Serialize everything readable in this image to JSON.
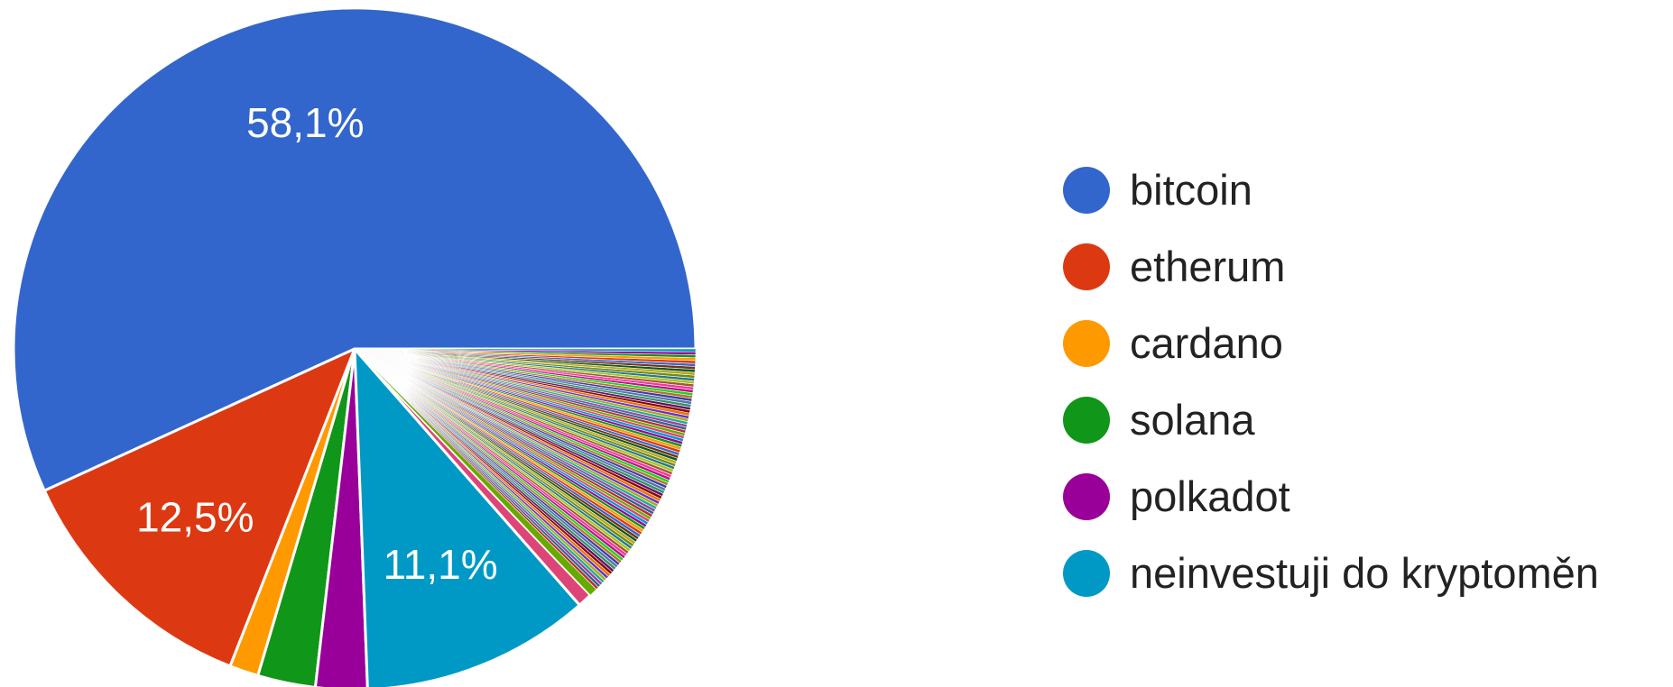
{
  "chart_data": {
    "type": "pie",
    "slices": [
      {
        "label": "bitcoin",
        "value": 58.1,
        "color": "#3366cc",
        "value_label": "58,1%",
        "in_legend": true
      },
      {
        "label": "etherum",
        "value": 12.5,
        "color": "#dc3912",
        "value_label": "12,5%",
        "in_legend": true
      },
      {
        "label": "cardano",
        "value": 1.4,
        "color": "#ff9900",
        "value_label": "",
        "in_legend": true
      },
      {
        "label": "solana",
        "value": 2.8,
        "color": "#109618",
        "value_label": "",
        "in_legend": true
      },
      {
        "label": "polkadot",
        "value": 2.5,
        "color": "#990099",
        "value_label": "",
        "in_legend": true
      },
      {
        "label": "neinvestuji do kryptoměn",
        "value": 11.1,
        "color": "#0099c6",
        "value_label": "11,1%",
        "in_legend": true
      },
      {
        "label": "",
        "value": 0.7,
        "color": "#dd4477",
        "value_label": "",
        "in_legend": false
      },
      {
        "label": "",
        "value": 0.4,
        "color": "#66aa00",
        "value_label": "",
        "in_legend": false
      },
      {
        "label": "",
        "value": 0.14,
        "color": "#b82e2e",
        "value_label": "",
        "in_legend": false
      },
      {
        "label": "",
        "value": 0.14,
        "color": "#316395",
        "value_label": "",
        "in_legend": false
      },
      {
        "label": "",
        "value": 0.14,
        "color": "#994499",
        "value_label": "",
        "in_legend": false
      },
      {
        "label": "",
        "value": 0.14,
        "color": "#22aa99",
        "value_label": "",
        "in_legend": false
      },
      {
        "label": "",
        "value": 0.14,
        "color": "#aaaa11",
        "value_label": "",
        "in_legend": false
      },
      {
        "label": "",
        "value": 0.14,
        "color": "#6633cc",
        "value_label": "",
        "in_legend": false
      },
      {
        "label": "",
        "value": 0.14,
        "color": "#e67300",
        "value_label": "",
        "in_legend": false
      },
      {
        "label": "",
        "value": 0.14,
        "color": "#8b0707",
        "value_label": "",
        "in_legend": false
      },
      {
        "label": "",
        "value": 0.14,
        "color": "#651067",
        "value_label": "",
        "in_legend": false
      },
      {
        "label": "",
        "value": 0.14,
        "color": "#329262",
        "value_label": "",
        "in_legend": false
      },
      {
        "label": "",
        "value": 0.14,
        "color": "#5574a6",
        "value_label": "",
        "in_legend": false
      },
      {
        "label": "",
        "value": 0.14,
        "color": "#3b3eac",
        "value_label": "",
        "in_legend": false
      },
      {
        "label": "",
        "value": 0.14,
        "color": "#b77322",
        "value_label": "",
        "in_legend": false
      },
      {
        "label": "",
        "value": 0.14,
        "color": "#16d620",
        "value_label": "",
        "in_legend": false
      },
      {
        "label": "",
        "value": 0.14,
        "color": "#b91383",
        "value_label": "",
        "in_legend": false
      },
      {
        "label": "",
        "value": 0.14,
        "color": "#f4359e",
        "value_label": "",
        "in_legend": false
      },
      {
        "label": "",
        "value": 0.14,
        "color": "#9c5935",
        "value_label": "",
        "in_legend": false
      },
      {
        "label": "",
        "value": 0.14,
        "color": "#a9c413",
        "value_label": "",
        "in_legend": false
      },
      {
        "label": "",
        "value": 0.14,
        "color": "#2a778d",
        "value_label": "",
        "in_legend": false
      },
      {
        "label": "",
        "value": 0.14,
        "color": "#668d1c",
        "value_label": "",
        "in_legend": false
      },
      {
        "label": "",
        "value": 0.14,
        "color": "#bea413",
        "value_label": "",
        "in_legend": false
      },
      {
        "label": "",
        "value": 0.14,
        "color": "#0c5922",
        "value_label": "",
        "in_legend": false
      },
      {
        "label": "",
        "value": 0.14,
        "color": "#743411",
        "value_label": "",
        "in_legend": false
      },
      {
        "label": "",
        "value": 0.14,
        "color": "#3366cc",
        "value_label": "",
        "in_legend": false
      },
      {
        "label": "",
        "value": 0.14,
        "color": "#dc3912",
        "value_label": "",
        "in_legend": false
      },
      {
        "label": "",
        "value": 0.14,
        "color": "#ff9900",
        "value_label": "",
        "in_legend": false
      },
      {
        "label": "",
        "value": 0.14,
        "color": "#109618",
        "value_label": "",
        "in_legend": false
      },
      {
        "label": "",
        "value": 0.14,
        "color": "#990099",
        "value_label": "",
        "in_legend": false
      },
      {
        "label": "",
        "value": 0.14,
        "color": "#0099c6",
        "value_label": "",
        "in_legend": false
      },
      {
        "label": "",
        "value": 0.14,
        "color": "#dd4477",
        "value_label": "",
        "in_legend": false
      },
      {
        "label": "",
        "value": 0.14,
        "color": "#66aa00",
        "value_label": "",
        "in_legend": false
      },
      {
        "label": "",
        "value": 0.14,
        "color": "#b82e2e",
        "value_label": "",
        "in_legend": false
      },
      {
        "label": "",
        "value": 0.14,
        "color": "#316395",
        "value_label": "",
        "in_legend": false
      },
      {
        "label": "",
        "value": 0.14,
        "color": "#994499",
        "value_label": "",
        "in_legend": false
      },
      {
        "label": "",
        "value": 0.14,
        "color": "#22aa99",
        "value_label": "",
        "in_legend": false
      },
      {
        "label": "",
        "value": 0.14,
        "color": "#aaaa11",
        "value_label": "",
        "in_legend": false
      },
      {
        "label": "",
        "value": 0.14,
        "color": "#6633cc",
        "value_label": "",
        "in_legend": false
      },
      {
        "label": "",
        "value": 0.14,
        "color": "#e67300",
        "value_label": "",
        "in_legend": false
      },
      {
        "label": "",
        "value": 0.14,
        "color": "#8b0707",
        "value_label": "",
        "in_legend": false
      },
      {
        "label": "",
        "value": 0.14,
        "color": "#651067",
        "value_label": "",
        "in_legend": false
      },
      {
        "label": "",
        "value": 0.14,
        "color": "#329262",
        "value_label": "",
        "in_legend": false
      },
      {
        "label": "",
        "value": 0.14,
        "color": "#5574a6",
        "value_label": "",
        "in_legend": false
      },
      {
        "label": "",
        "value": 0.14,
        "color": "#3b3eac",
        "value_label": "",
        "in_legend": false
      },
      {
        "label": "",
        "value": 0.14,
        "color": "#b77322",
        "value_label": "",
        "in_legend": false
      },
      {
        "label": "",
        "value": 0.14,
        "color": "#16d620",
        "value_label": "",
        "in_legend": false
      },
      {
        "label": "",
        "value": 0.14,
        "color": "#b91383",
        "value_label": "",
        "in_legend": false
      },
      {
        "label": "",
        "value": 0.14,
        "color": "#f4359e",
        "value_label": "",
        "in_legend": false
      },
      {
        "label": "",
        "value": 0.14,
        "color": "#9c5935",
        "value_label": "",
        "in_legend": false
      },
      {
        "label": "",
        "value": 0.14,
        "color": "#a9c413",
        "value_label": "",
        "in_legend": false
      },
      {
        "label": "",
        "value": 0.14,
        "color": "#2a778d",
        "value_label": "",
        "in_legend": false
      },
      {
        "label": "",
        "value": 0.14,
        "color": "#668d1c",
        "value_label": "",
        "in_legend": false
      },
      {
        "label": "",
        "value": 0.14,
        "color": "#bea413",
        "value_label": "",
        "in_legend": false
      },
      {
        "label": "",
        "value": 0.14,
        "color": "#0c5922",
        "value_label": "",
        "in_legend": false
      },
      {
        "label": "",
        "value": 0.14,
        "color": "#743411",
        "value_label": "",
        "in_legend": false
      },
      {
        "label": "",
        "value": 0.14,
        "color": "#3366cc",
        "value_label": "",
        "in_legend": false
      },
      {
        "label": "",
        "value": 0.14,
        "color": "#dc3912",
        "value_label": "",
        "in_legend": false
      },
      {
        "label": "",
        "value": 0.14,
        "color": "#ff9900",
        "value_label": "",
        "in_legend": false
      },
      {
        "label": "",
        "value": 0.14,
        "color": "#109618",
        "value_label": "",
        "in_legend": false
      },
      {
        "label": "",
        "value": 0.14,
        "color": "#990099",
        "value_label": "",
        "in_legend": false
      },
      {
        "label": "",
        "value": 0.14,
        "color": "#0099c6",
        "value_label": "",
        "in_legend": false
      },
      {
        "label": "",
        "value": 0.14,
        "color": "#dd4477",
        "value_label": "",
        "in_legend": false
      },
      {
        "label": "",
        "value": 0.14,
        "color": "#66aa00",
        "value_label": "",
        "in_legend": false
      },
      {
        "label": "",
        "value": 0.14,
        "color": "#b82e2e",
        "value_label": "",
        "in_legend": false
      },
      {
        "label": "",
        "value": 0.14,
        "color": "#316395",
        "value_label": "",
        "in_legend": false
      },
      {
        "label": "",
        "value": 0.14,
        "color": "#994499",
        "value_label": "",
        "in_legend": false
      },
      {
        "label": "",
        "value": 0.14,
        "color": "#22aa99",
        "value_label": "",
        "in_legend": false
      },
      {
        "label": "",
        "value": 0.14,
        "color": "#aaaa11",
        "value_label": "",
        "in_legend": false
      },
      {
        "label": "",
        "value": 0.14,
        "color": "#6633cc",
        "value_label": "",
        "in_legend": false
      },
      {
        "label": "",
        "value": 0.14,
        "color": "#e67300",
        "value_label": "",
        "in_legend": false
      },
      {
        "label": "",
        "value": 0.14,
        "color": "#8b0707",
        "value_label": "",
        "in_legend": false
      },
      {
        "label": "",
        "value": 0.14,
        "color": "#651067",
        "value_label": "",
        "in_legend": false
      },
      {
        "label": "",
        "value": 0.14,
        "color": "#329262",
        "value_label": "",
        "in_legend": false
      },
      {
        "label": "",
        "value": 0.14,
        "color": "#5574a6",
        "value_label": "",
        "in_legend": false
      },
      {
        "label": "",
        "value": 0.14,
        "color": "#3b3eac",
        "value_label": "",
        "in_legend": false
      },
      {
        "label": "",
        "value": 0.14,
        "color": "#b77322",
        "value_label": "",
        "in_legend": false
      },
      {
        "label": "",
        "value": 0.14,
        "color": "#16d620",
        "value_label": "",
        "in_legend": false
      },
      {
        "label": "",
        "value": 0.14,
        "color": "#b91383",
        "value_label": "",
        "in_legend": false
      },
      {
        "label": "",
        "value": 0.14,
        "color": "#f4359e",
        "value_label": "",
        "in_legend": false
      },
      {
        "label": "",
        "value": 0.14,
        "color": "#9c5935",
        "value_label": "",
        "in_legend": false
      },
      {
        "label": "",
        "value": 0.14,
        "color": "#a9c413",
        "value_label": "",
        "in_legend": false
      },
      {
        "label": "",
        "value": 0.14,
        "color": "#2a778d",
        "value_label": "",
        "in_legend": false
      },
      {
        "label": "",
        "value": 0.14,
        "color": "#668d1c",
        "value_label": "",
        "in_legend": false
      },
      {
        "label": "",
        "value": 0.14,
        "color": "#bea413",
        "value_label": "",
        "in_legend": false
      },
      {
        "label": "",
        "value": 0.14,
        "color": "#0c5922",
        "value_label": "",
        "in_legend": false
      },
      {
        "label": "",
        "value": 0.14,
        "color": "#743411",
        "value_label": "",
        "in_legend": false
      },
      {
        "label": "",
        "value": 0.14,
        "color": "#3366cc",
        "value_label": "",
        "in_legend": false
      },
      {
        "label": "",
        "value": 0.14,
        "color": "#dc3912",
        "value_label": "",
        "in_legend": false
      },
      {
        "label": "",
        "value": 0.14,
        "color": "#ff9900",
        "value_label": "",
        "in_legend": false
      },
      {
        "label": "",
        "value": 0.14,
        "color": "#109618",
        "value_label": "",
        "in_legend": false
      },
      {
        "label": "",
        "value": 0.14,
        "color": "#990099",
        "value_label": "",
        "in_legend": false
      },
      {
        "label": "",
        "value": 0.14,
        "color": "#0099c6",
        "value_label": "",
        "in_legend": false
      }
    ],
    "legend": [
      "bitcoin",
      "etherum",
      "cardano",
      "solana",
      "polkadot",
      "neinvestuji do kryptoměn"
    ],
    "legend_position": "right",
    "start_angle": "3 o'clock, counter-clockwise",
    "slice_border_color": "#ffffff",
    "label_color": "#ffffff"
  }
}
